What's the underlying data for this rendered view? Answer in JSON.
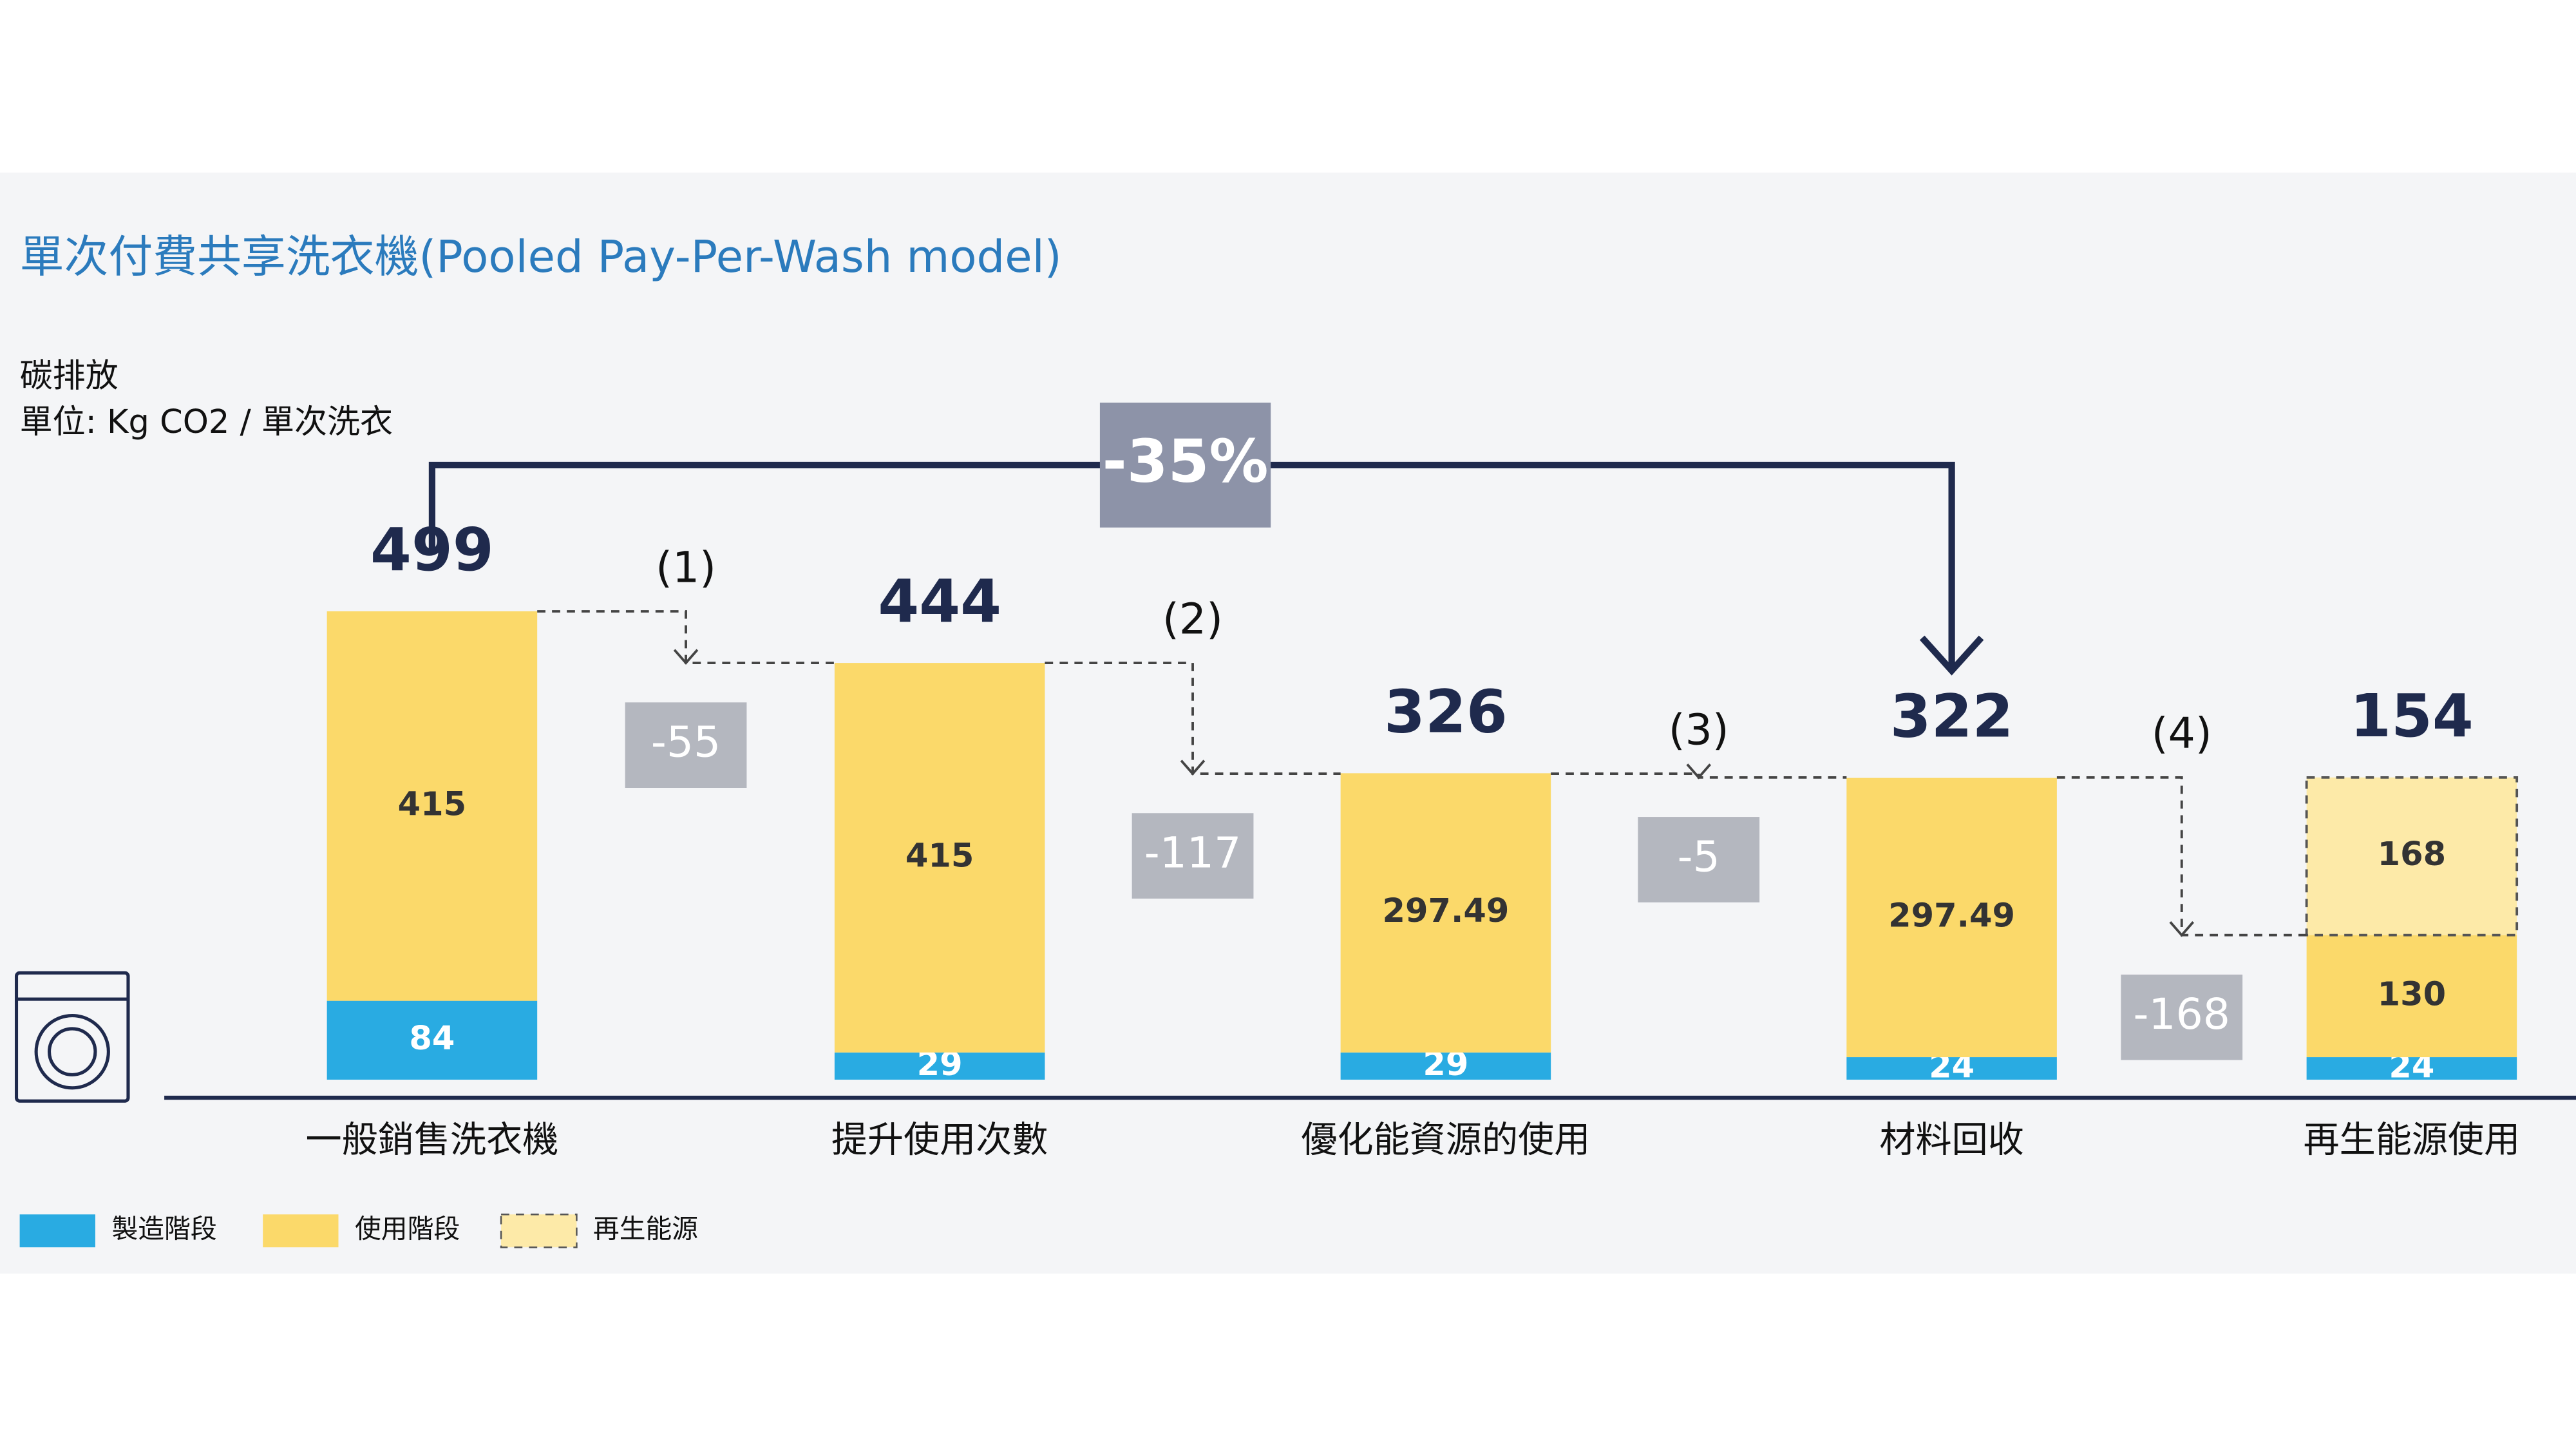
{
  "chart_data": {
    "type": "waterfall-stacked",
    "title": "單次付費共享洗衣機(Pooled Pay-Per-Wash model)",
    "y_label": "碳排放",
    "unit_label": "單位: Kg CO2 / 單次洗衣",
    "categories": [
      "一般銷售洗衣機",
      "提升使用次數",
      "優化能資源的使用",
      "材料回收",
      "再生能源使用"
    ],
    "series": [
      {
        "name": "製造階段",
        "color": "#29abe2",
        "values": [
          84,
          29,
          29,
          24,
          24
        ]
      },
      {
        "name": "使用階段",
        "color": "#fbd96a",
        "values": [
          415,
          415,
          297.49,
          297.49,
          130
        ]
      },
      {
        "name": "再生能源",
        "color": "#fdeaa8",
        "dashed": true,
        "values": [
          null,
          null,
          null,
          null,
          168
        ]
      }
    ],
    "totals": [
      499,
      444,
      326,
      322,
      154
    ],
    "steps": [
      {
        "label": "(1)",
        "change": -55
      },
      {
        "label": "(2)",
        "change": -117
      },
      {
        "label": "(3)",
        "change": -5
      },
      {
        "label": "(4)",
        "change": -168
      }
    ],
    "reduction": "-35%"
  }
}
